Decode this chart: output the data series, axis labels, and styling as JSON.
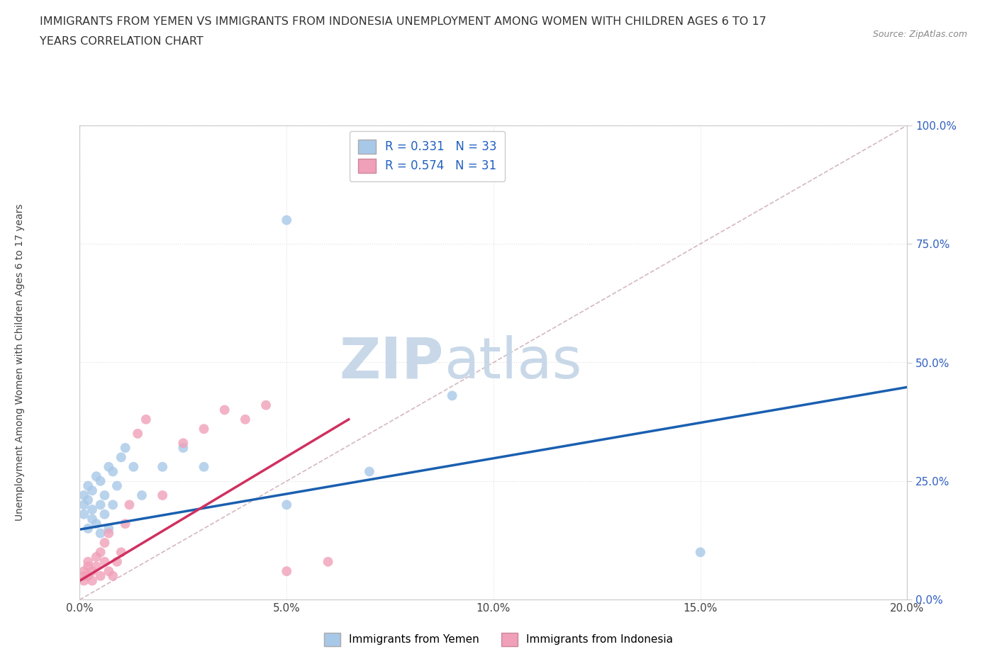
{
  "title_line1": "IMMIGRANTS FROM YEMEN VS IMMIGRANTS FROM INDONESIA UNEMPLOYMENT AMONG WOMEN WITH CHILDREN AGES 6 TO 17",
  "title_line2": "YEARS CORRELATION CHART",
  "source_text": "Source: ZipAtlas.com",
  "ylabel": "Unemployment Among Women with Children Ages 6 to 17 years",
  "xlim": [
    0.0,
    0.2
  ],
  "ylim": [
    0.0,
    1.0
  ],
  "xtick_values": [
    0.0,
    0.05,
    0.1,
    0.15,
    0.2
  ],
  "ytick_values": [
    0.0,
    0.25,
    0.5,
    0.75,
    1.0
  ],
  "yemen_color": "#a8c8e8",
  "indonesia_color": "#f0a0b8",
  "yemen_line_color": "#1a5fb0",
  "indonesia_line_color": "#d03060",
  "diag_line_color": "#d0b0b8",
  "watermark_color": "#c8d8e8",
  "watermark_text": "ZIPatlas",
  "background_color": "#ffffff",
  "plot_bg_color": "#ffffff",
  "grid_color": "#e0e0e0",
  "right_tick_color": "#3060c0",
  "legend_label_color": "#2060c0",
  "yemen_x": [
    0.001,
    0.001,
    0.001,
    0.002,
    0.002,
    0.002,
    0.003,
    0.003,
    0.003,
    0.004,
    0.004,
    0.005,
    0.005,
    0.005,
    0.006,
    0.006,
    0.007,
    0.007,
    0.008,
    0.008,
    0.009,
    0.01,
    0.011,
    0.013,
    0.015,
    0.02,
    0.025,
    0.03,
    0.05,
    0.07,
    0.09,
    0.15,
    0.05
  ],
  "yemen_y": [
    0.18,
    0.2,
    0.22,
    0.15,
    0.21,
    0.24,
    0.17,
    0.19,
    0.23,
    0.16,
    0.26,
    0.14,
    0.2,
    0.25,
    0.18,
    0.22,
    0.15,
    0.28,
    0.2,
    0.27,
    0.24,
    0.3,
    0.32,
    0.28,
    0.22,
    0.28,
    0.32,
    0.28,
    0.2,
    0.27,
    0.43,
    0.1,
    0.8
  ],
  "indonesia_x": [
    0.001,
    0.001,
    0.001,
    0.002,
    0.002,
    0.002,
    0.003,
    0.003,
    0.004,
    0.004,
    0.005,
    0.005,
    0.006,
    0.006,
    0.007,
    0.007,
    0.008,
    0.009,
    0.01,
    0.011,
    0.012,
    0.014,
    0.016,
    0.02,
    0.025,
    0.03,
    0.035,
    0.04,
    0.045,
    0.05,
    0.06
  ],
  "indonesia_y": [
    0.05,
    0.06,
    0.04,
    0.07,
    0.05,
    0.08,
    0.06,
    0.04,
    0.07,
    0.09,
    0.1,
    0.05,
    0.12,
    0.08,
    0.06,
    0.14,
    0.05,
    0.08,
    0.1,
    0.16,
    0.2,
    0.35,
    0.38,
    0.22,
    0.33,
    0.36,
    0.4,
    0.38,
    0.41,
    0.06,
    0.08
  ],
  "yemen_line_x0": 0.0,
  "yemen_line_x1": 0.2,
  "yemen_line_y0": 0.148,
  "yemen_line_y1": 0.448,
  "indonesia_line_x0": 0.0,
  "indonesia_line_x1": 0.065,
  "indonesia_line_y0": 0.04,
  "indonesia_line_y1": 0.38
}
